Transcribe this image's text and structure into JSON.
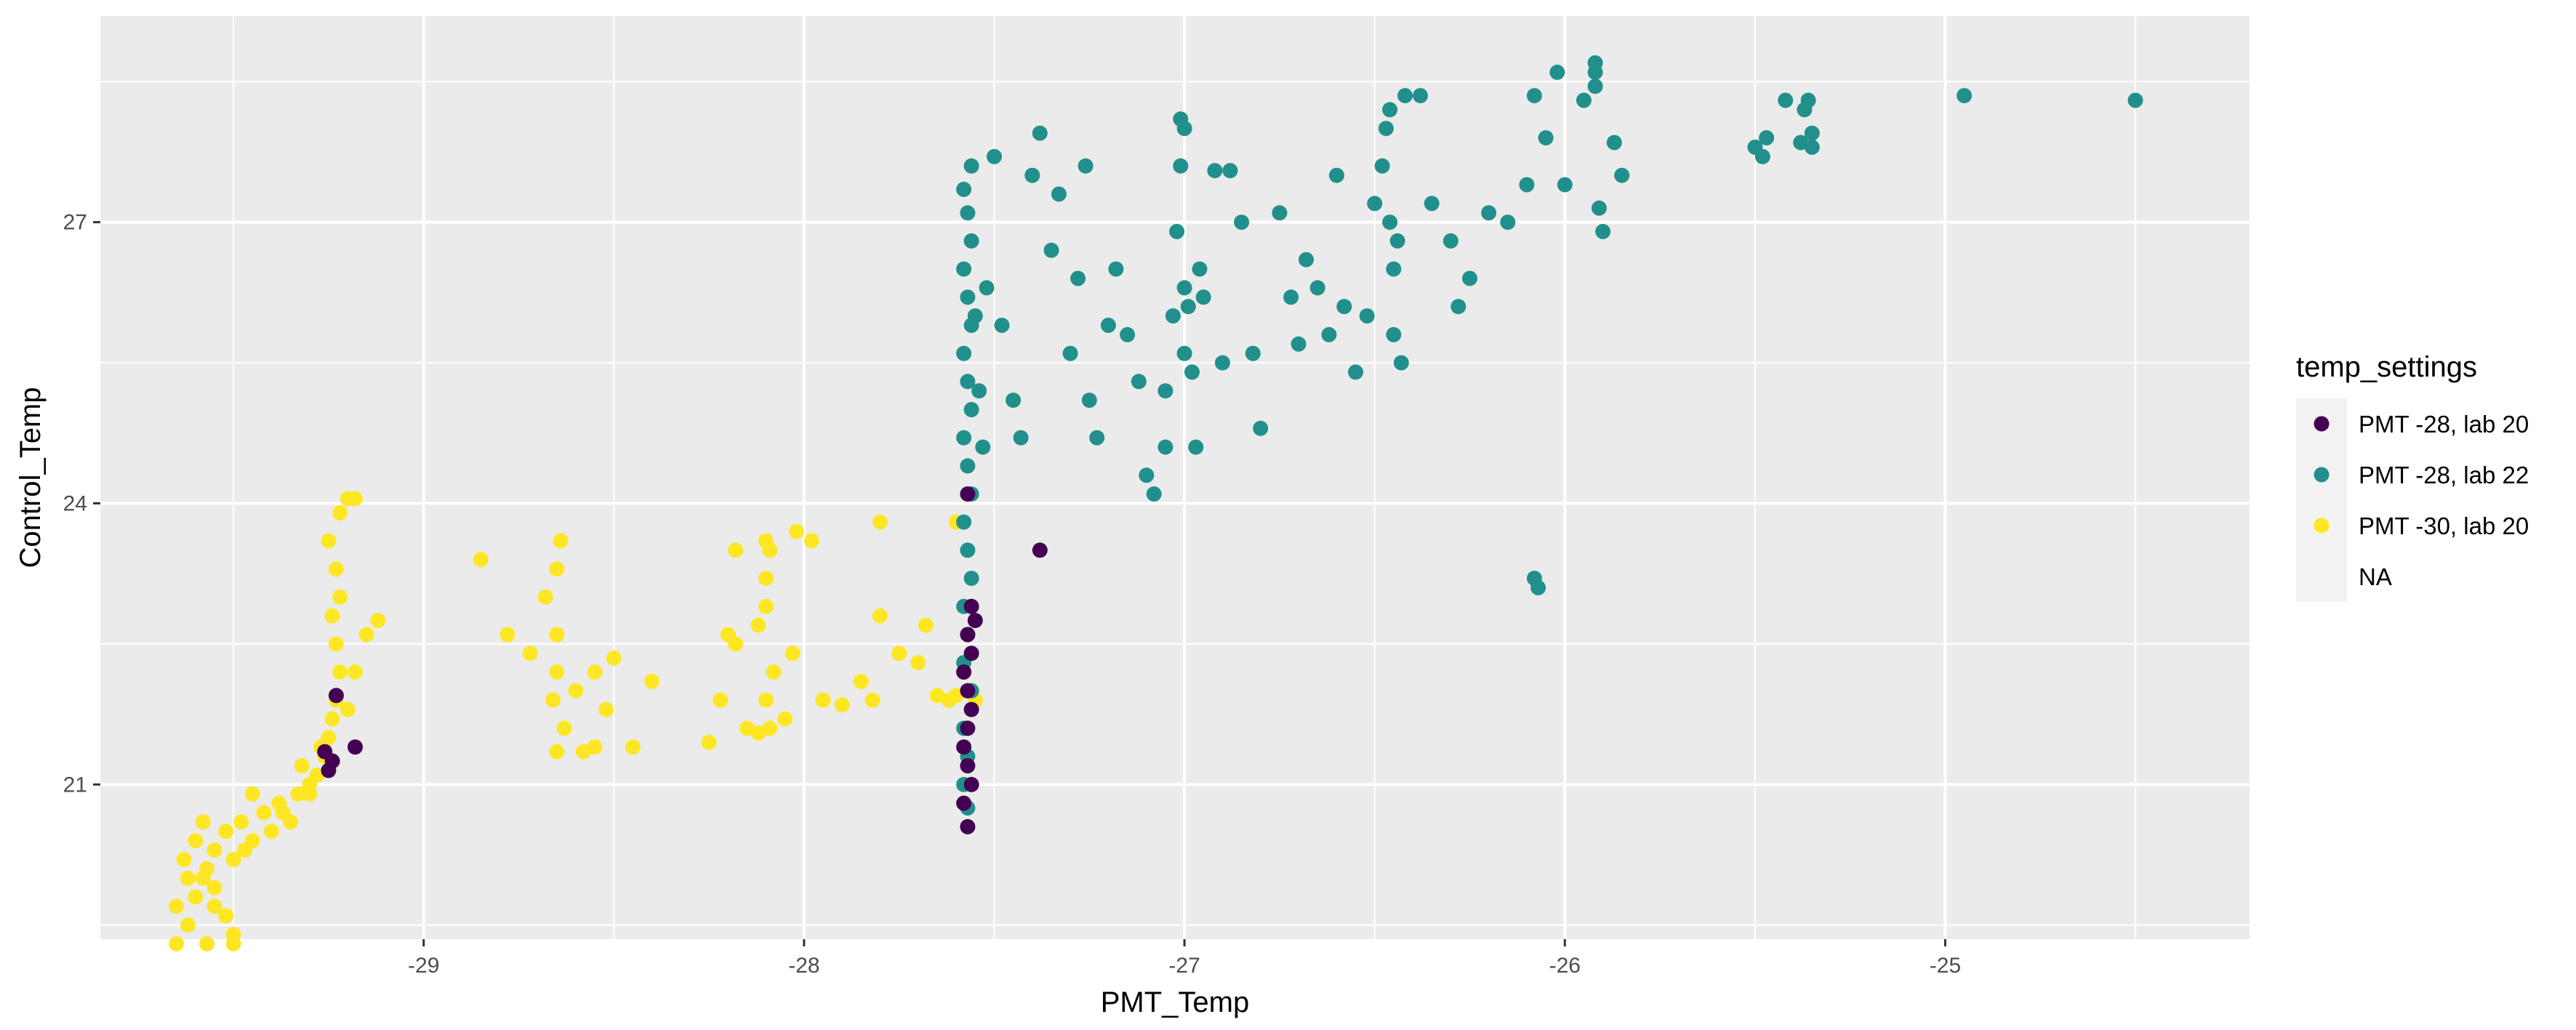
{
  "chart_data": {
    "type": "scatter",
    "title": "",
    "xlabel": "PMT_Temp",
    "ylabel": "Control_Temp",
    "xlim": [
      -29.85,
      -24.2
    ],
    "ylim": [
      19.35,
      29.2
    ],
    "x_ticks": [
      -29,
      -28,
      -27,
      -26,
      -25
    ],
    "x_tick_labels": [
      "-29",
      "-28",
      "-27",
      "-26",
      "-25"
    ],
    "y_ticks": [
      21,
      24,
      27
    ],
    "y_tick_labels": [
      "21",
      "24",
      "27"
    ],
    "grid": true,
    "legend": {
      "title": "temp_settings",
      "placement": "right",
      "entries": [
        {
          "label": "PMT -28, lab 20",
          "color": "#440154"
        },
        {
          "label": "PMT -28, lab 22",
          "color": "#21908C"
        },
        {
          "label": "PMT -30, lab 20",
          "color": "#FDE725"
        },
        {
          "label": "NA",
          "color": ""
        }
      ]
    },
    "series": [
      {
        "name": "PMT -30, lab 20",
        "color": "#FDE725",
        "points": [
          [
            -29.65,
            19.7
          ],
          [
            -29.62,
            19.5
          ],
          [
            -29.6,
            19.8
          ],
          [
            -29.58,
            20.0
          ],
          [
            -29.55,
            19.9
          ],
          [
            -29.52,
            19.6
          ],
          [
            -29.5,
            19.4
          ],
          [
            -29.63,
            20.2
          ],
          [
            -29.6,
            20.4
          ],
          [
            -29.57,
            20.1
          ],
          [
            -29.55,
            20.3
          ],
          [
            -29.52,
            20.5
          ],
          [
            -29.5,
            20.2
          ],
          [
            -29.48,
            20.6
          ],
          [
            -29.45,
            20.4
          ],
          [
            -29.42,
            20.7
          ],
          [
            -29.4,
            20.5
          ],
          [
            -29.38,
            20.8
          ],
          [
            -29.35,
            20.6
          ],
          [
            -29.33,
            20.9
          ],
          [
            -29.3,
            21.0
          ],
          [
            -29.28,
            21.1
          ],
          [
            -29.26,
            21.3
          ],
          [
            -29.25,
            21.5
          ],
          [
            -29.24,
            21.7
          ],
          [
            -29.23,
            21.9
          ],
          [
            -29.22,
            22.2
          ],
          [
            -29.23,
            22.5
          ],
          [
            -29.24,
            22.8
          ],
          [
            -29.22,
            23.0
          ],
          [
            -29.23,
            23.3
          ],
          [
            -29.25,
            23.6
          ],
          [
            -29.22,
            23.9
          ],
          [
            -29.2,
            24.05
          ],
          [
            -29.18,
            24.05
          ],
          [
            -29.12,
            22.75
          ],
          [
            -29.15,
            22.6
          ],
          [
            -29.18,
            22.2
          ],
          [
            -29.2,
            21.8
          ],
          [
            -29.27,
            21.4
          ],
          [
            -29.32,
            21.2
          ],
          [
            -29.45,
            20.9
          ],
          [
            -29.58,
            20.6
          ],
          [
            -29.62,
            20.0
          ],
          [
            -29.55,
            19.7
          ],
          [
            -29.47,
            20.3
          ],
          [
            -29.37,
            20.7
          ],
          [
            -29.3,
            20.9
          ],
          [
            -29.65,
            19.3
          ],
          [
            -29.57,
            19.3
          ],
          [
            -29.5,
            19.3
          ],
          [
            -28.85,
            23.4
          ],
          [
            -28.78,
            22.6
          ],
          [
            -28.72,
            22.4
          ],
          [
            -28.68,
            23.0
          ],
          [
            -28.65,
            23.3
          ],
          [
            -28.64,
            23.6
          ],
          [
            -28.65,
            22.6
          ],
          [
            -28.65,
            22.2
          ],
          [
            -28.66,
            21.9
          ],
          [
            -28.63,
            21.6
          ],
          [
            -28.65,
            21.35
          ],
          [
            -28.58,
            21.35
          ],
          [
            -28.55,
            21.4
          ],
          [
            -28.6,
            22.0
          ],
          [
            -28.55,
            22.2
          ],
          [
            -28.5,
            22.35
          ],
          [
            -28.52,
            21.8
          ],
          [
            -28.45,
            21.4
          ],
          [
            -28.4,
            22.1
          ],
          [
            -28.25,
            21.45
          ],
          [
            -28.22,
            21.9
          ],
          [
            -28.2,
            22.6
          ],
          [
            -28.18,
            23.5
          ],
          [
            -28.18,
            22.5
          ],
          [
            -28.15,
            21.6
          ],
          [
            -28.12,
            21.55
          ],
          [
            -28.12,
            22.7
          ],
          [
            -28.1,
            22.9
          ],
          [
            -28.1,
            23.2
          ],
          [
            -28.09,
            23.5
          ],
          [
            -28.1,
            23.6
          ],
          [
            -28.1,
            21.9
          ],
          [
            -28.09,
            21.6
          ],
          [
            -28.08,
            22.2
          ],
          [
            -28.05,
            21.7
          ],
          [
            -28.03,
            22.4
          ],
          [
            -28.02,
            23.7
          ],
          [
            -27.98,
            23.6
          ],
          [
            -27.95,
            21.9
          ],
          [
            -27.9,
            21.85
          ],
          [
            -27.85,
            22.1
          ],
          [
            -27.82,
            21.9
          ],
          [
            -27.8,
            23.8
          ],
          [
            -27.8,
            22.8
          ],
          [
            -27.75,
            22.4
          ],
          [
            -27.7,
            22.3
          ],
          [
            -27.68,
            22.7
          ],
          [
            -27.65,
            21.95
          ],
          [
            -27.62,
            21.9
          ],
          [
            -27.6,
            21.95
          ],
          [
            -27.58,
            22.2
          ],
          [
            -27.6,
            23.8
          ],
          [
            -27.56,
            22.0
          ],
          [
            -27.55,
            21.9
          ]
        ]
      },
      {
        "name": "PMT -28, lab 22",
        "color": "#21908C",
        "points": [
          [
            -27.57,
            20.75
          ],
          [
            -27.58,
            21.0
          ],
          [
            -27.57,
            21.3
          ],
          [
            -27.58,
            21.6
          ],
          [
            -27.56,
            22.0
          ],
          [
            -27.58,
            22.3
          ],
          [
            -27.57,
            22.6
          ],
          [
            -27.58,
            22.9
          ],
          [
            -27.56,
            23.2
          ],
          [
            -27.57,
            23.5
          ],
          [
            -27.58,
            23.8
          ],
          [
            -27.56,
            24.1
          ],
          [
            -27.57,
            24.4
          ],
          [
            -27.58,
            24.7
          ],
          [
            -27.56,
            25.0
          ],
          [
            -27.57,
            25.3
          ],
          [
            -27.58,
            25.6
          ],
          [
            -27.56,
            25.9
          ],
          [
            -27.57,
            26.2
          ],
          [
            -27.58,
            26.5
          ],
          [
            -27.56,
            26.8
          ],
          [
            -27.57,
            27.1
          ],
          [
            -27.58,
            27.35
          ],
          [
            -27.56,
            27.6
          ],
          [
            -27.55,
            26.0
          ],
          [
            -27.54,
            25.2
          ],
          [
            -27.53,
            24.6
          ],
          [
            -27.52,
            26.3
          ],
          [
            -27.5,
            27.7
          ],
          [
            -27.48,
            25.9
          ],
          [
            -27.45,
            25.1
          ],
          [
            -27.43,
            24.7
          ],
          [
            -27.4,
            27.5
          ],
          [
            -27.38,
            27.95
          ],
          [
            -27.35,
            26.7
          ],
          [
            -27.33,
            27.3
          ],
          [
            -27.3,
            25.6
          ],
          [
            -27.28,
            26.4
          ],
          [
            -27.26,
            27.6
          ],
          [
            -27.25,
            25.1
          ],
          [
            -27.23,
            24.7
          ],
          [
            -27.2,
            25.9
          ],
          [
            -27.18,
            26.5
          ],
          [
            -27.15,
            25.8
          ],
          [
            -27.12,
            25.3
          ],
          [
            -27.1,
            24.3
          ],
          [
            -27.08,
            24.1
          ],
          [
            -27.05,
            24.6
          ],
          [
            -27.05,
            25.2
          ],
          [
            -27.03,
            26.0
          ],
          [
            -27.02,
            26.9
          ],
          [
            -27.01,
            27.6
          ],
          [
            -27.0,
            28.0
          ],
          [
            -27.01,
            28.1
          ],
          [
            -27.0,
            26.3
          ],
          [
            -27.0,
            25.6
          ],
          [
            -26.99,
            26.1
          ],
          [
            -26.98,
            25.4
          ],
          [
            -26.97,
            24.6
          ],
          [
            -26.96,
            26.5
          ],
          [
            -26.95,
            26.2
          ],
          [
            -26.92,
            27.55
          ],
          [
            -26.9,
            25.5
          ],
          [
            -26.88,
            27.55
          ],
          [
            -26.85,
            27.0
          ],
          [
            -26.82,
            25.6
          ],
          [
            -26.8,
            24.8
          ],
          [
            -26.75,
            27.1
          ],
          [
            -26.72,
            26.2
          ],
          [
            -26.7,
            25.7
          ],
          [
            -26.68,
            26.6
          ],
          [
            -26.65,
            26.3
          ],
          [
            -26.62,
            25.8
          ],
          [
            -26.6,
            27.5
          ],
          [
            -26.58,
            26.1
          ],
          [
            -26.55,
            25.4
          ],
          [
            -26.52,
            26.0
          ],
          [
            -26.5,
            27.2
          ],
          [
            -26.48,
            27.6
          ],
          [
            -26.47,
            28.0
          ],
          [
            -26.46,
            28.2
          ],
          [
            -26.46,
            27.0
          ],
          [
            -26.45,
            26.5
          ],
          [
            -26.45,
            25.8
          ],
          [
            -26.44,
            26.8
          ],
          [
            -26.43,
            25.5
          ],
          [
            -26.42,
            28.35
          ],
          [
            -26.38,
            28.35
          ],
          [
            -26.35,
            27.2
          ],
          [
            -26.3,
            26.8
          ],
          [
            -26.28,
            26.1
          ],
          [
            -26.25,
            26.4
          ],
          [
            -26.2,
            27.1
          ],
          [
            -26.15,
            27.0
          ],
          [
            -26.1,
            27.4
          ],
          [
            -26.08,
            28.35
          ],
          [
            -26.05,
            27.9
          ],
          [
            -26.02,
            28.6
          ],
          [
            -26.0,
            27.4
          ],
          [
            -25.95,
            28.3
          ],
          [
            -25.92,
            28.45
          ],
          [
            -25.92,
            28.6
          ],
          [
            -25.92,
            28.7
          ],
          [
            -25.91,
            27.15
          ],
          [
            -25.9,
            26.9
          ],
          [
            -25.87,
            27.85
          ],
          [
            -25.85,
            27.5
          ],
          [
            -26.07,
            23.1
          ],
          [
            -26.08,
            23.2
          ],
          [
            -25.5,
            27.8
          ],
          [
            -25.48,
            27.7
          ],
          [
            -25.47,
            27.9
          ],
          [
            -25.42,
            28.3
          ],
          [
            -25.38,
            27.85
          ],
          [
            -25.37,
            28.2
          ],
          [
            -25.36,
            28.3
          ],
          [
            -25.35,
            27.8
          ],
          [
            -25.35,
            27.95
          ],
          [
            -24.95,
            28.35
          ],
          [
            -24.5,
            28.3
          ]
        ]
      },
      {
        "name": "PMT -28, lab 20",
        "color": "#440154",
        "points": [
          [
            -27.57,
            20.55
          ],
          [
            -27.58,
            20.8
          ],
          [
            -27.56,
            21.0
          ],
          [
            -27.57,
            21.2
          ],
          [
            -27.58,
            21.4
          ],
          [
            -27.57,
            21.6
          ],
          [
            -27.56,
            21.8
          ],
          [
            -27.57,
            22.0
          ],
          [
            -27.58,
            22.2
          ],
          [
            -27.56,
            22.4
          ],
          [
            -27.57,
            22.6
          ],
          [
            -27.56,
            22.9
          ],
          [
            -27.55,
            22.75
          ],
          [
            -27.57,
            24.1
          ],
          [
            -27.38,
            23.5
          ],
          [
            -29.26,
            21.35
          ],
          [
            -29.25,
            21.15
          ],
          [
            -29.24,
            21.25
          ],
          [
            -29.23,
            21.95
          ],
          [
            -29.18,
            21.4
          ]
        ]
      }
    ]
  }
}
